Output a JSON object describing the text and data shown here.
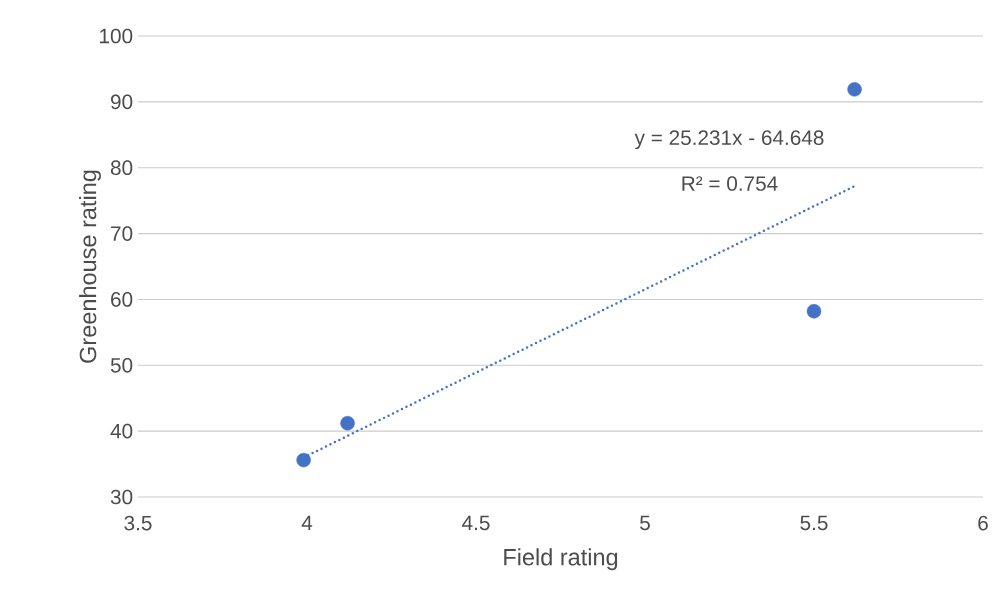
{
  "chart_data": {
    "type": "scatter",
    "xlabel": "Field rating",
    "ylabel": "Greenhouse rating",
    "xlim": [
      3.5,
      6
    ],
    "xticks": [
      3.5,
      4,
      4.5,
      5,
      5.5,
      6
    ],
    "ylim": [
      30,
      100
    ],
    "yticks": [
      30,
      40,
      50,
      60,
      70,
      80,
      90,
      100
    ],
    "grid": "y",
    "series": [
      {
        "color": "#4472c4",
        "marker": "circle",
        "x": [
          3.99,
          4.12,
          5.5,
          5.62
        ],
        "values": [
          35.6,
          41.2,
          58.2,
          91.9
        ]
      },
      {
        "type": "line",
        "color": "#4472c4",
        "line_style": "dotted",
        "marker": "none",
        "x": [
          3.99,
          5.62
        ],
        "values": [
          36.0,
          77.2
        ]
      }
    ],
    "annotations": [
      "y = 25.231x - 64.648",
      "R² = 0.754"
    ]
  }
}
